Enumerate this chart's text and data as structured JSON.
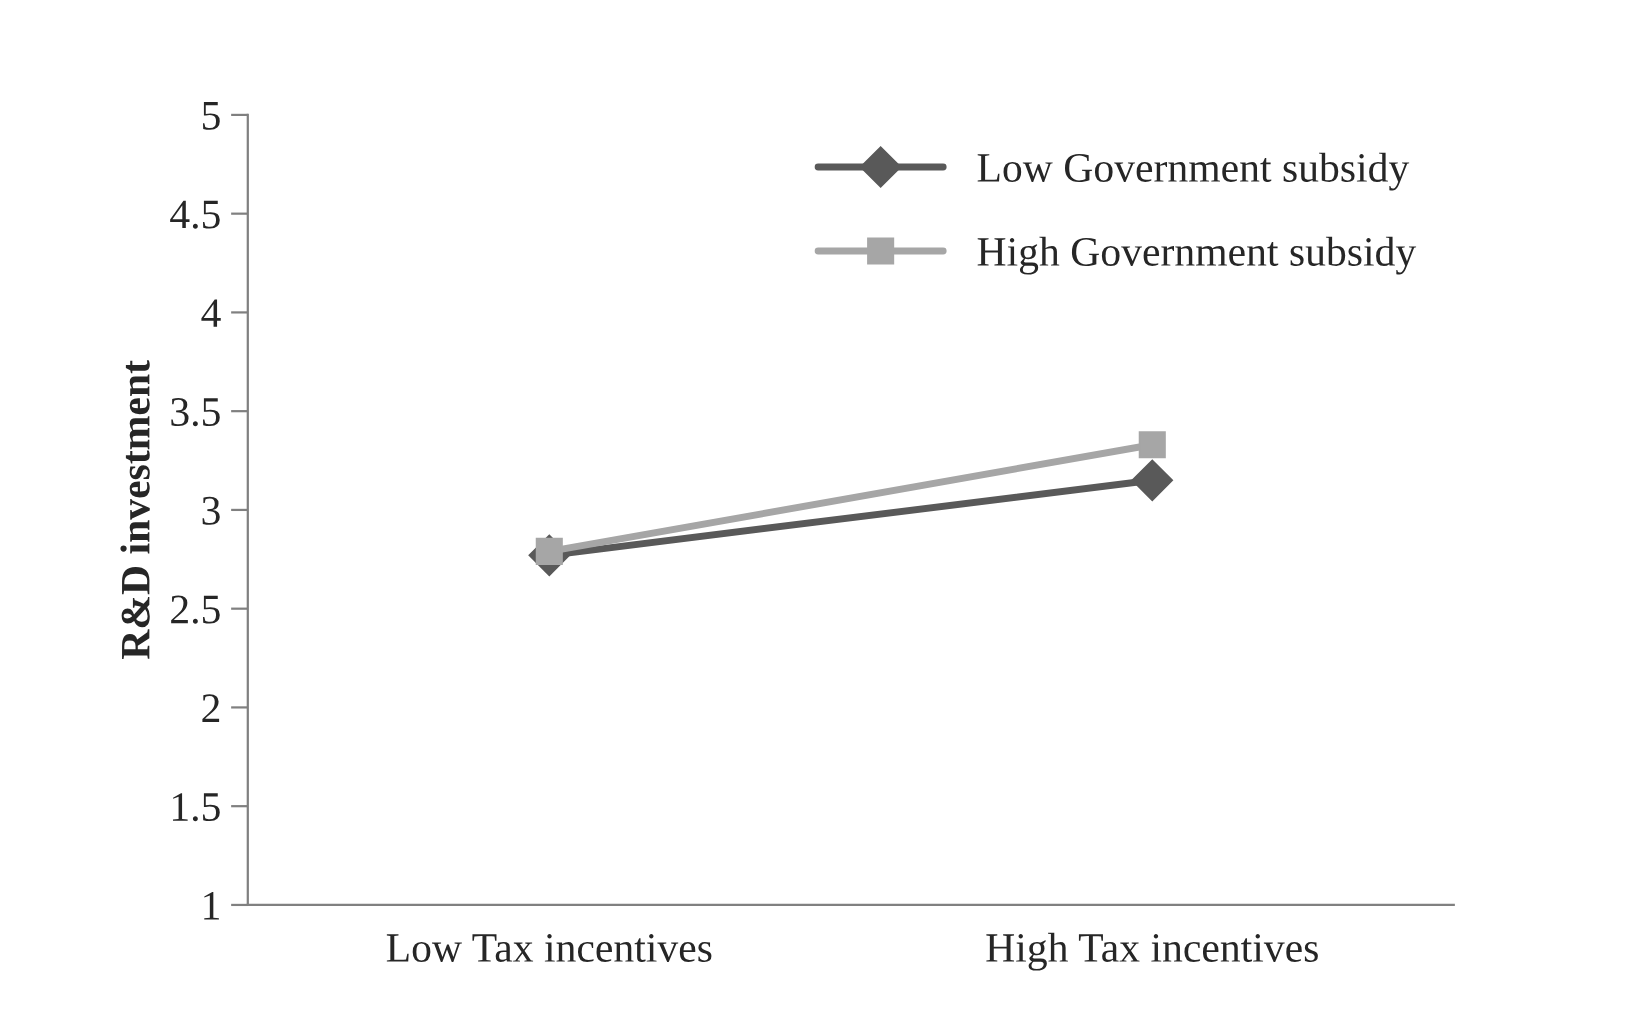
{
  "chart_data": {
    "type": "line",
    "ylabel": "R&D investment",
    "categories": [
      "Low Tax incentives",
      "High Tax incentives"
    ],
    "series": [
      {
        "name": "Low Government subsidy",
        "color": "#595959",
        "marker": "diamond",
        "values": [
          2.77,
          3.15
        ]
      },
      {
        "name": "High Government subsidy",
        "color": "#a6a6a6",
        "marker": "square",
        "values": [
          2.79,
          3.33
        ]
      }
    ],
    "ylim": [
      1,
      5
    ],
    "yticks": [
      1,
      1.5,
      2,
      2.5,
      3,
      3.5,
      4,
      4.5,
      5
    ],
    "legend": "top right",
    "grid": false
  }
}
